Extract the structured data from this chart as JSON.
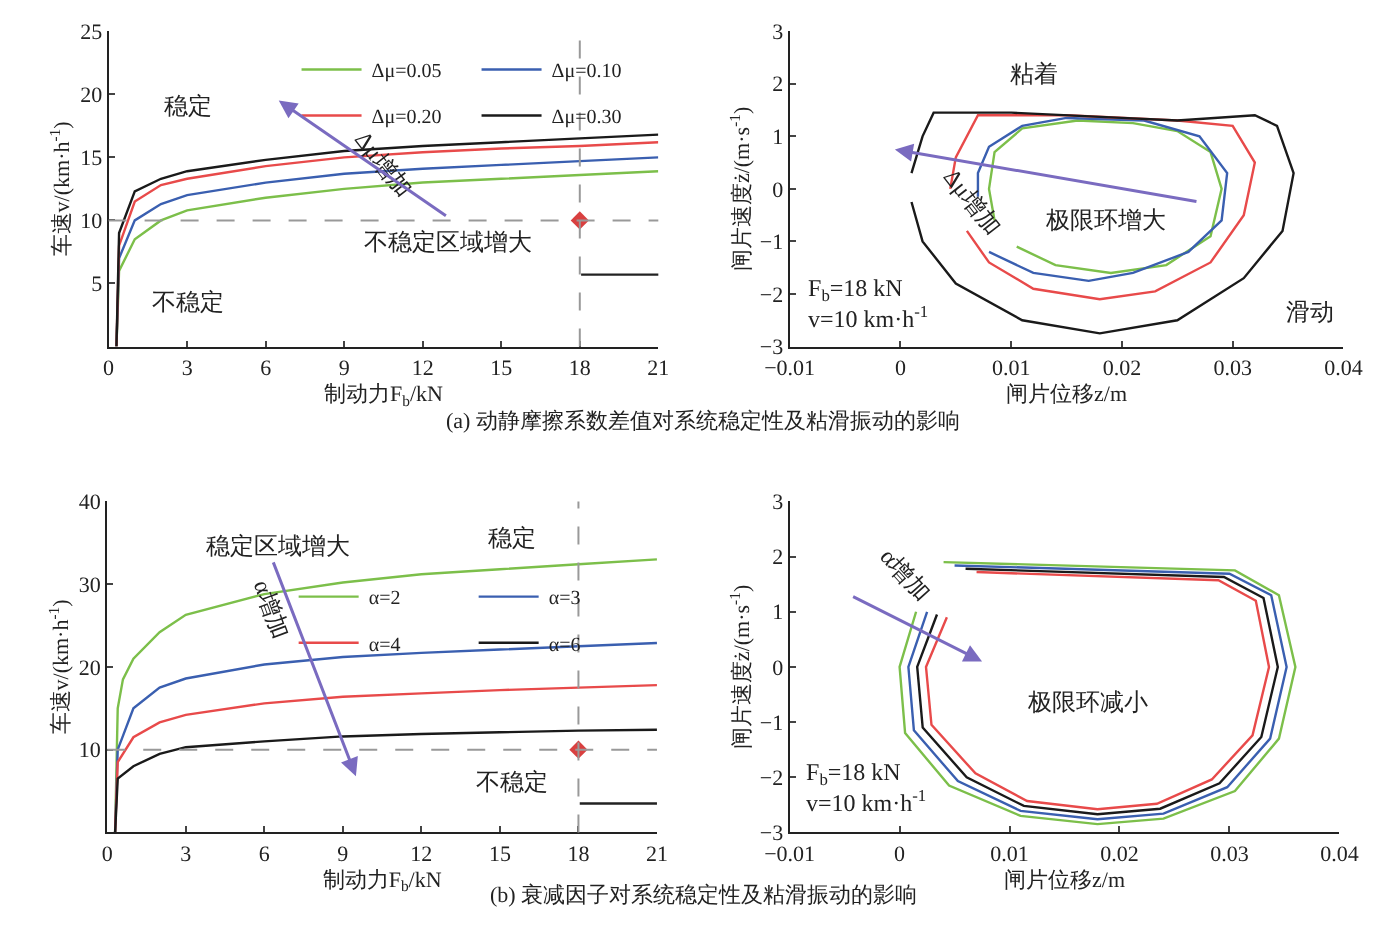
{
  "chart_data": [
    {
      "type": "line",
      "title": "(a) 动静摩擦系数差值对系统稳定性及粘滑振动的影响",
      "xlabel": "制动力F$_{b}$/kN",
      "ylabel": "车速v/(km·h$^{-1}$)",
      "xlim": [
        0,
        21
      ],
      "xticks": [
        0,
        3,
        6,
        9,
        12,
        15,
        18,
        21
      ],
      "ylim": [
        0,
        25
      ],
      "yticks": [
        5,
        10,
        15,
        20,
        25
      ],
      "legend": "top right",
      "grid": false,
      "ref_lines": [
        {
          "axis": "y",
          "value": 10,
          "color": "#999999",
          "line_style": "dashed"
        },
        {
          "axis": "x",
          "value": 18,
          "color": "#999999",
          "line_style": "dashed"
        }
      ],
      "annotations": [
        "稳定",
        "不稳定",
        "不稳定区域增大",
        "Δμ增加"
      ],
      "series": [
        {
          "name": "Δμ=0.05",
          "color": "#7cbf4a",
          "x": [
            0.3,
            0.4,
            1,
            2,
            3,
            6,
            9,
            12,
            15,
            18,
            21
          ],
          "values": [
            0,
            6,
            8.5,
            10,
            10.8,
            11.8,
            12.5,
            13,
            13.3,
            13.6,
            13.9
          ]
        },
        {
          "name": "Δμ=0.10",
          "color": "#3a5fb0",
          "x": [
            0.3,
            0.4,
            1,
            2,
            3,
            6,
            9,
            12,
            15,
            18,
            21
          ],
          "values": [
            0,
            7,
            10,
            11.3,
            12,
            13,
            13.7,
            14.1,
            14.4,
            14.7,
            15
          ]
        },
        {
          "name": "Δμ=0.20",
          "color": "#e84a4a",
          "x": [
            0.3,
            0.4,
            1,
            2,
            3,
            6,
            9,
            12,
            15,
            18,
            21
          ],
          "values": [
            0,
            8,
            11.5,
            12.8,
            13.3,
            14.3,
            15,
            15.4,
            15.7,
            15.9,
            16.2
          ]
        },
        {
          "name": "Δμ=0.30",
          "color": "#1a1a1a",
          "x": [
            0.3,
            0.4,
            1,
            2,
            3,
            6,
            9,
            12,
            15,
            18,
            21
          ],
          "values": [
            0,
            9,
            12.3,
            13.3,
            13.9,
            14.8,
            15.5,
            15.9,
            16.2,
            16.5,
            16.8
          ]
        },
        {
          "type": "scatter",
          "marker": "diamond",
          "color": "#d94040",
          "x": [
            18
          ],
          "values": [
            10
          ]
        }
      ]
    },
    {
      "type": "line",
      "xlabel": "闸片位移z/m",
      "ylabel": "闸片速度ż/(m·s$^{-1}$)",
      "xlim": [
        -0.01,
        0.04
      ],
      "xticks": [
        -0.01,
        0,
        0.01,
        0.02,
        0.03,
        0.04
      ],
      "ylim": [
        -3,
        3
      ],
      "yticks": [
        -3,
        -2,
        -1,
        0,
        1,
        2,
        3
      ],
      "grid": false,
      "annotations": [
        "粘着",
        "滑动",
        "Δμ增加",
        "极限环增大",
        "F$_{b}$=18 kN\nv=10 km·h$^{-1}$"
      ],
      "series": [
        {
          "color": "#7cbf4a",
          "x": [
            0.0105,
            0.014,
            0.019,
            0.024,
            0.028,
            0.029,
            0.028,
            0.025,
            0.021,
            0.016,
            0.011,
            0.0085,
            0.008,
            0.0085
          ],
          "values": [
            -1.1,
            -1.45,
            -1.6,
            -1.45,
            -0.9,
            0,
            0.7,
            1.1,
            1.25,
            1.3,
            1.15,
            0.7,
            0,
            -0.6
          ]
        },
        {
          "color": "#3a5fb0",
          "x": [
            0.007,
            0.007,
            0.008,
            0.011,
            0.015,
            0.022,
            0.027,
            0.0295,
            0.029,
            0.026,
            0.021,
            0.017,
            0.012,
            0.008
          ],
          "values": [
            -0.15,
            0.3,
            0.8,
            1.2,
            1.35,
            1.3,
            1,
            0.3,
            -0.6,
            -1.2,
            -1.6,
            -1.75,
            -1.6,
            -1.2
          ]
        },
        {
          "color": "#e84a4a",
          "x": [
            0.0045,
            0.005,
            0.007,
            0.015,
            0.025,
            0.03,
            0.032,
            0.031,
            0.028,
            0.023,
            0.018,
            0.012,
            0.008,
            0.006
          ],
          "values": [
            0,
            0.6,
            1.4,
            1.4,
            1.3,
            1.2,
            0.5,
            -0.5,
            -1.4,
            -1.95,
            -2.1,
            -1.9,
            -1.4,
            -0.8
          ]
        },
        {
          "color": "#1a1a1a",
          "x": [
            0.001,
            0.002,
            0.003,
            0.01,
            0.02,
            0.025,
            0.032,
            0.034,
            0.0355,
            0.0345,
            0.031,
            0.025,
            0.018,
            0.011,
            0.005,
            0.002,
            0.001
          ],
          "values": [
            0.3,
            1,
            1.45,
            1.45,
            1.35,
            1.3,
            1.4,
            1.2,
            0.3,
            -0.8,
            -1.7,
            -2.5,
            -2.75,
            -2.5,
            -1.8,
            -1,
            -0.25
          ]
        }
      ]
    },
    {
      "type": "line",
      "title": "(b) 衰减因子对系统稳定性及粘滑振动的影响",
      "xlabel": "制动力F$_{b}$/kN",
      "ylabel": "车速v/(km·h$^{-1}$)",
      "xlim": [
        0,
        21
      ],
      "xticks": [
        0,
        3,
        6,
        9,
        12,
        15,
        18,
        21
      ],
      "ylim": [
        0,
        40
      ],
      "yticks": [
        10,
        20,
        30,
        40
      ],
      "legend": "top",
      "grid": false,
      "ref_lines": [
        {
          "axis": "y",
          "value": 10,
          "color": "#999999",
          "line_style": "dashed"
        },
        {
          "axis": "x",
          "value": 18,
          "color": "#999999",
          "line_style": "dashed"
        }
      ],
      "annotations": [
        "稳定区域增大",
        "稳定",
        "不稳定",
        "α增加"
      ],
      "series": [
        {
          "name": "α=2",
          "color": "#7cbf4a",
          "x": [
            0.3,
            0.4,
            0.6,
            1,
            2,
            3,
            6,
            9,
            12,
            15,
            18,
            21
          ],
          "values": [
            0,
            15,
            18.5,
            21,
            24.2,
            26.3,
            28.8,
            30.2,
            31.2,
            31.8,
            32.4,
            33
          ]
        },
        {
          "name": "α=3",
          "color": "#3a5fb0",
          "x": [
            0.3,
            0.4,
            1,
            2,
            3,
            6,
            9,
            12,
            15,
            18,
            21
          ],
          "values": [
            0,
            10,
            15,
            17.5,
            18.6,
            20.3,
            21.2,
            21.7,
            22.1,
            22.5,
            22.9
          ]
        },
        {
          "name": "α=4",
          "color": "#e84a4a",
          "x": [
            0.3,
            0.4,
            1,
            2,
            3,
            6,
            9,
            12,
            15,
            18,
            21
          ],
          "values": [
            0,
            8.5,
            11.5,
            13.3,
            14.2,
            15.6,
            16.4,
            16.8,
            17.2,
            17.5,
            17.8
          ]
        },
        {
          "name": "α=6",
          "color": "#1a1a1a",
          "x": [
            0.3,
            0.4,
            1,
            2,
            3,
            6,
            9,
            12,
            15,
            18,
            21
          ],
          "values": [
            0,
            6.5,
            8,
            9.5,
            10.3,
            11,
            11.6,
            11.9,
            12.1,
            12.3,
            12.4
          ]
        },
        {
          "type": "scatter",
          "marker": "diamond",
          "color": "#d94040",
          "x": [
            18
          ],
          "values": [
            10
          ]
        }
      ]
    },
    {
      "type": "line",
      "xlabel": "闸片位移z/m",
      "ylabel": "闸片速度ż/(m·s$^{-1}$)",
      "xlim": [
        -0.01,
        0.04
      ],
      "xticks": [
        -0.01,
        0,
        0.01,
        0.02,
        0.03,
        0.04
      ],
      "ylim": [
        -3,
        3
      ],
      "yticks": [
        -3,
        -2,
        -1,
        0,
        1,
        2,
        3
      ],
      "grid": false,
      "annotations": [
        "α增加",
        "极限环减小",
        "F$_{b}$=18 kN\nv=10 km·h$^{-1}$"
      ],
      "series": [
        {
          "color": "#7cbf4a",
          "x": [
            0.004,
            0.0305,
            0.0345,
            0.036,
            0.0345,
            0.0305,
            0.024,
            0.018,
            0.011,
            0.0045,
            0.0005,
            0,
            0.0015
          ],
          "values": [
            1.9,
            1.75,
            1.3,
            0,
            -1.3,
            -2.25,
            -2.75,
            -2.85,
            -2.7,
            -2.15,
            -1.2,
            0,
            1
          ]
        },
        {
          "color": "#3a5fb0",
          "x": [
            0.005,
            0.03,
            0.0338,
            0.0352,
            0.0337,
            0.0298,
            0.024,
            0.018,
            0.011,
            0.0053,
            0.0013,
            0.0008,
            0.0025
          ],
          "values": [
            1.84,
            1.69,
            1.3,
            0,
            -1.3,
            -2.18,
            -2.66,
            -2.76,
            -2.61,
            -2.07,
            -1.15,
            0,
            1
          ]
        },
        {
          "color": "#1a1a1a",
          "x": [
            0.006,
            0.0295,
            0.0331,
            0.0344,
            0.0329,
            0.0291,
            0.0237,
            0.018,
            0.0113,
            0.0061,
            0.0021,
            0.0016,
            0.0034
          ],
          "values": [
            1.78,
            1.63,
            1.25,
            0,
            -1.27,
            -2.11,
            -2.57,
            -2.67,
            -2.52,
            -2,
            -1.1,
            0,
            0.95
          ]
        },
        {
          "color": "#e84a4a",
          "x": [
            0.007,
            0.029,
            0.0324,
            0.0336,
            0.0321,
            0.0284,
            0.0234,
            0.018,
            0.0116,
            0.0069,
            0.0029,
            0.0024,
            0.0043
          ],
          "values": [
            1.72,
            1.57,
            1.2,
            0,
            -1.24,
            -2.04,
            -2.48,
            -2.58,
            -2.43,
            -1.93,
            -1.05,
            0,
            0.9
          ]
        }
      ]
    }
  ]
}
